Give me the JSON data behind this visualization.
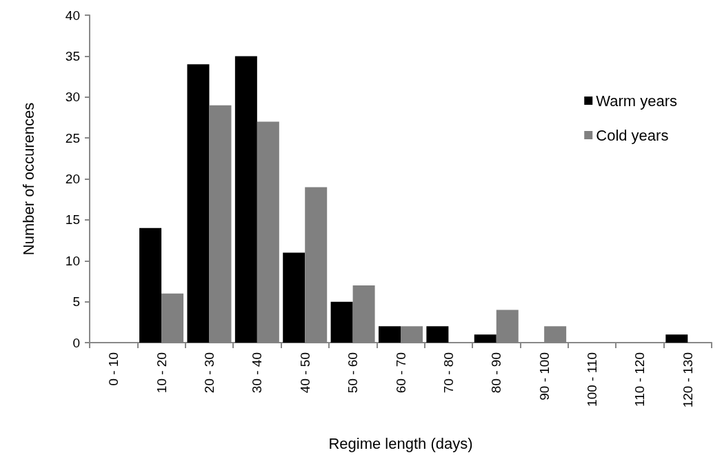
{
  "chart_data": {
    "type": "bar",
    "xlabel": "Regime length (days)",
    "ylabel": "Number of occurences",
    "categories": [
      "0 - 10",
      "10 - 20",
      "20 - 30",
      "30 - 40",
      "40 - 50",
      "50 - 60",
      "60 - 70",
      "70 - 80",
      "80 - 90",
      "90 - 100",
      "100 - 110",
      "110 - 120",
      "120 - 130"
    ],
    "series": [
      {
        "name": "Warm years",
        "color": "#000000",
        "values": [
          0,
          14,
          34,
          35,
          11,
          5,
          2,
          2,
          1,
          0,
          0,
          0,
          1
        ]
      },
      {
        "name": "Cold years",
        "color": "#808080",
        "values": [
          0,
          6,
          29,
          27,
          19,
          7,
          2,
          0,
          4,
          2,
          0,
          0,
          0
        ]
      }
    ],
    "ylim": [
      0,
      40
    ],
    "yticks": [
      0,
      5,
      10,
      15,
      20,
      25,
      30,
      35,
      40
    ],
    "grid": false,
    "legend": "top right"
  }
}
